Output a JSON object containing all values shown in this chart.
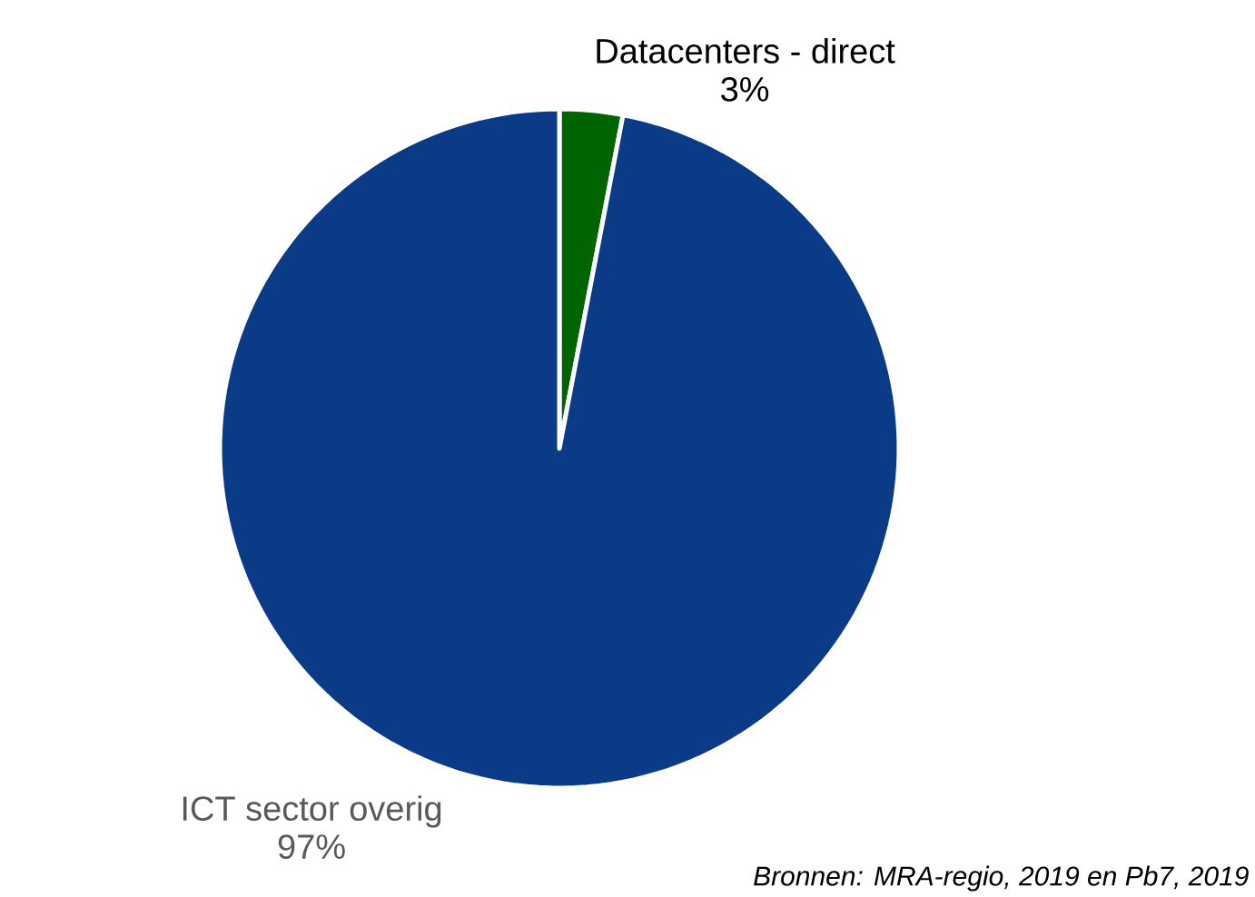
{
  "chart_data": {
    "type": "pie",
    "categories": [
      "Datacenters - direct",
      "ICT sector overig"
    ],
    "values": [
      3,
      97
    ],
    "colors": [
      "#006400",
      "#0b3a87"
    ],
    "value_labels": [
      "3%",
      "97%"
    ],
    "annotations": [
      "*Bronnen: MRA-regio, 2019 en Pb7, 2019*"
    ]
  }
}
